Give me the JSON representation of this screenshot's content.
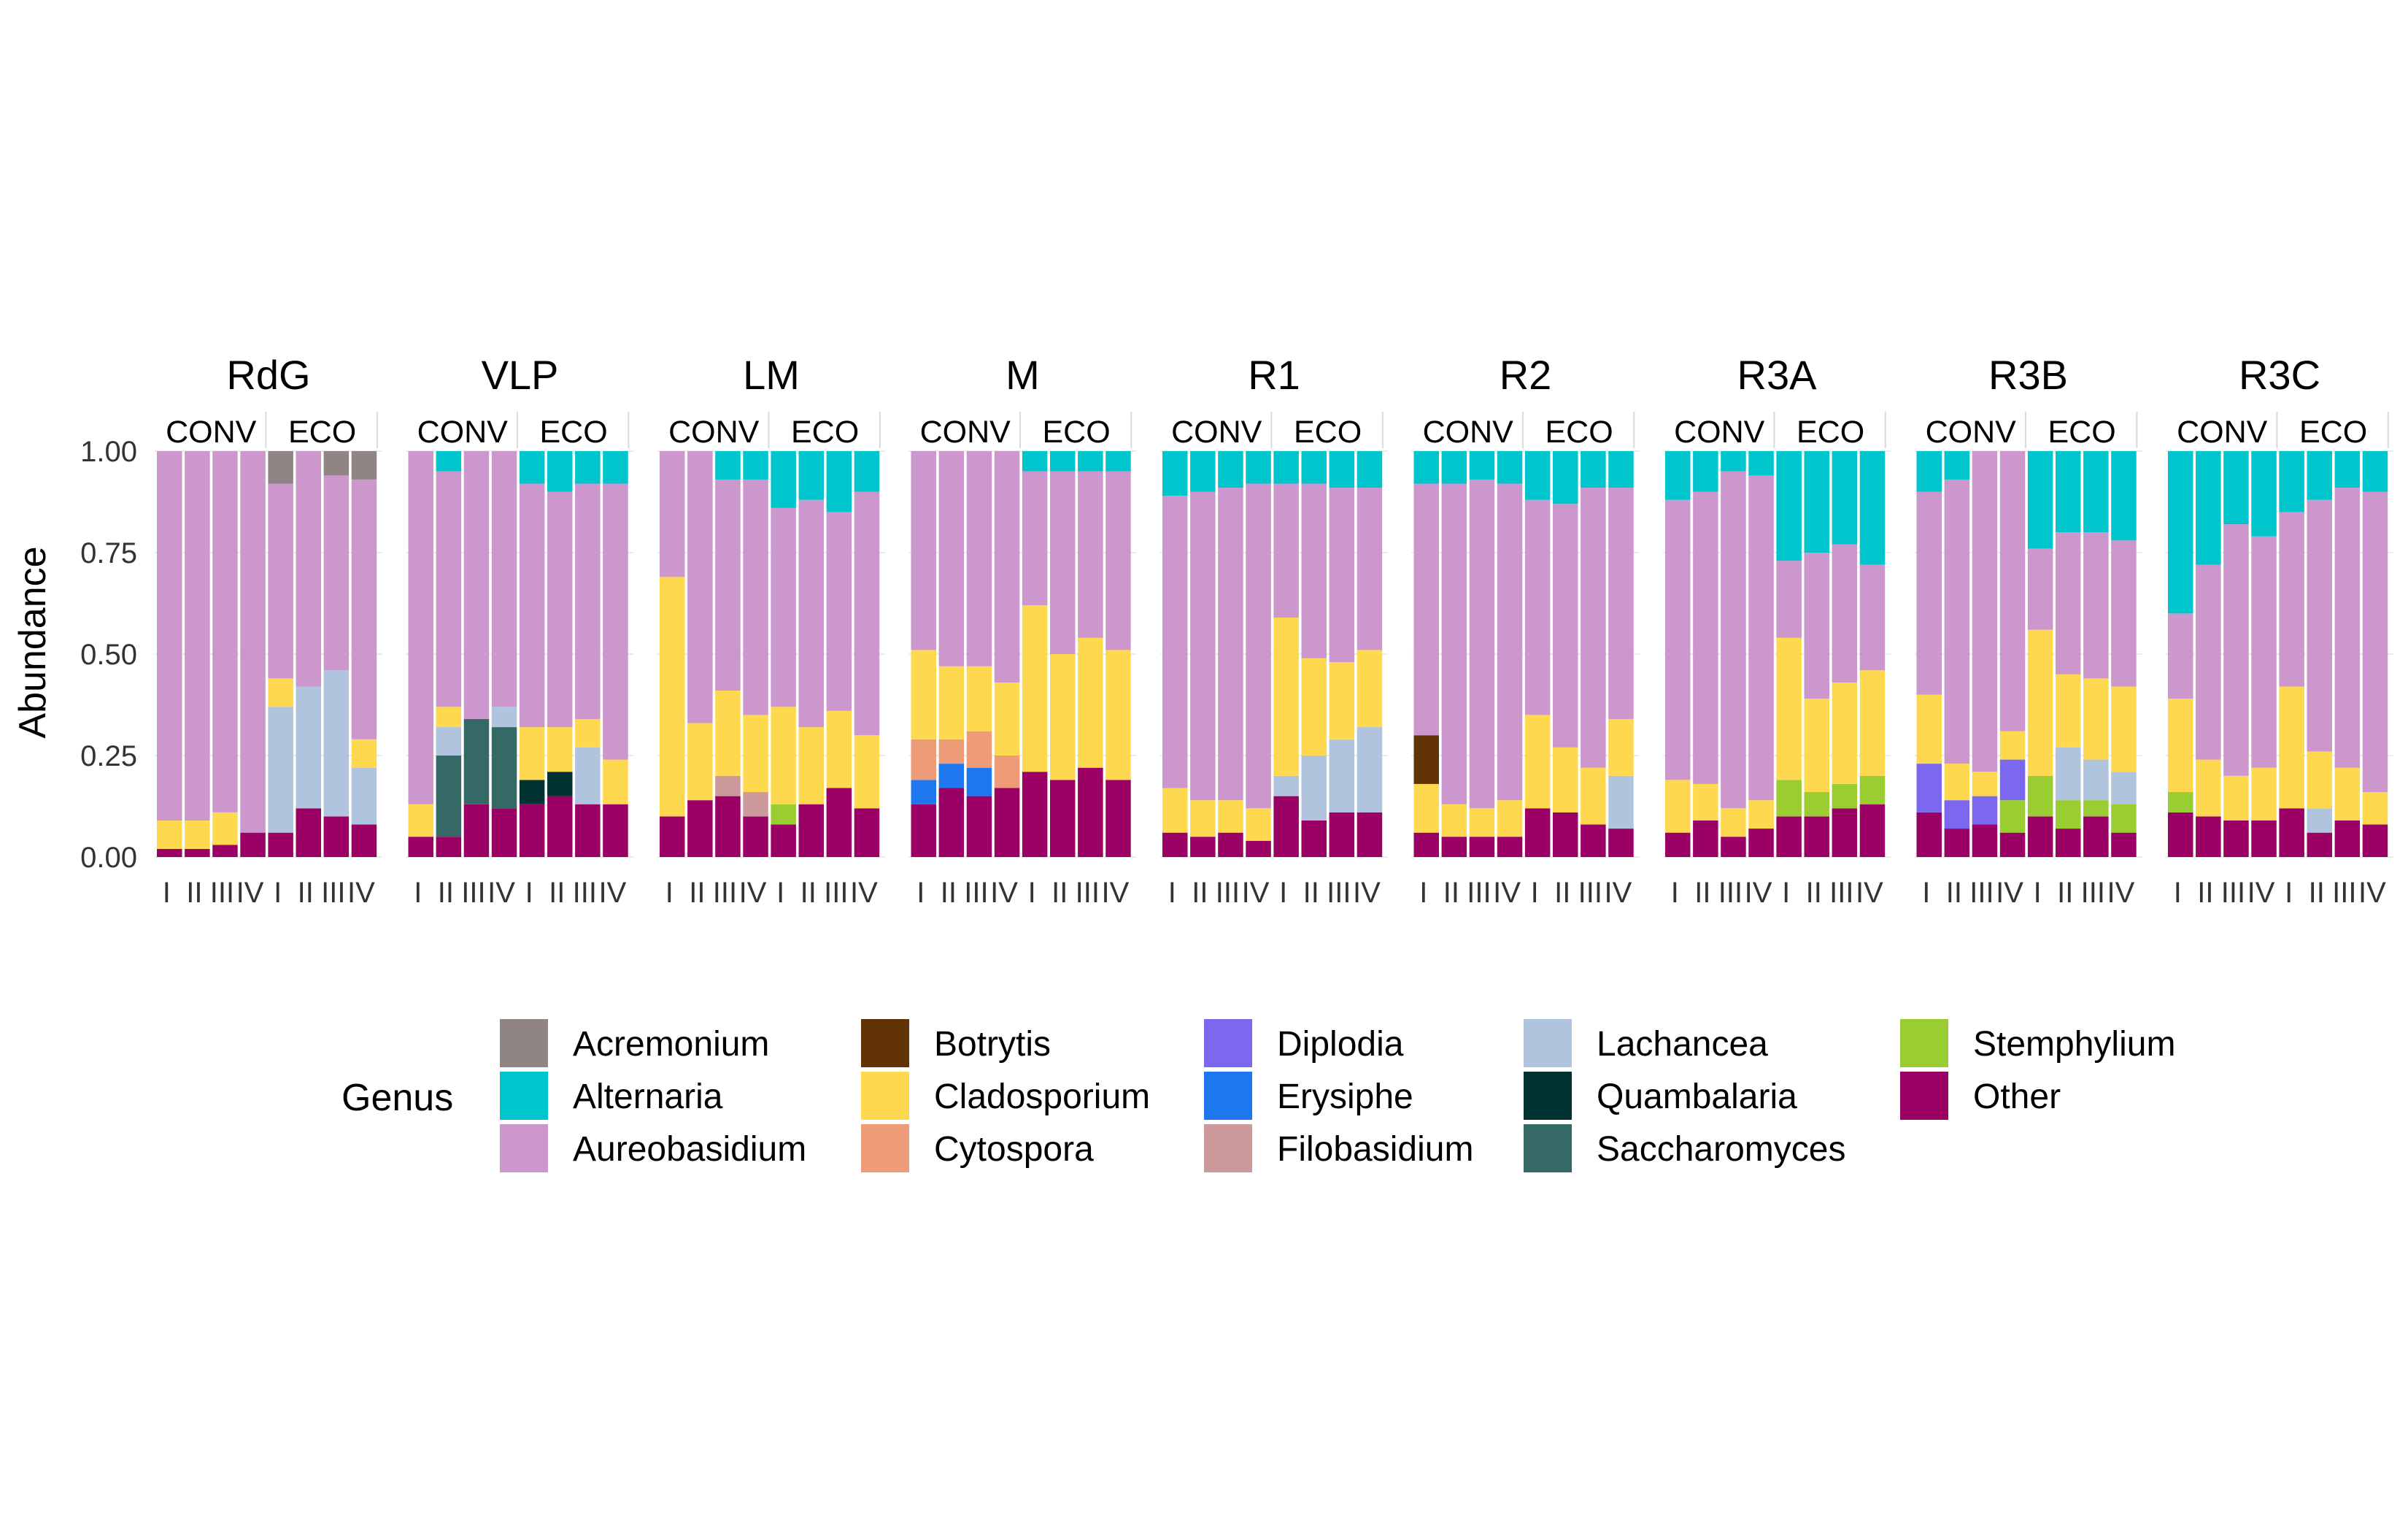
{
  "chart_data": {
    "type": "bar",
    "stacked": true,
    "ylabel": "Abundance",
    "ylim": [
      0,
      1
    ],
    "yticks": [
      "0.00",
      "0.25",
      "0.50",
      "0.75",
      "1.00"
    ],
    "facet_groups": [
      "CONV",
      "ECO"
    ],
    "replicates": [
      "I",
      "II",
      "III",
      "IV"
    ],
    "legend": {
      "title": "Genus",
      "position": "bottom"
    },
    "genera": [
      {
        "name": "Acremonium",
        "color": "#918584"
      },
      {
        "name": "Alternaria",
        "color": "#00C5CD"
      },
      {
        "name": "Aureobasidium",
        "color": "#CC97CC"
      },
      {
        "name": "Botrytis",
        "color": "#623405"
      },
      {
        "name": "Cladosporium",
        "color": "#FED94F"
      },
      {
        "name": "Cytospora",
        "color": "#EE9B78"
      },
      {
        "name": "Diplodia",
        "color": "#7B68EE"
      },
      {
        "name": "Erysiphe",
        "color": "#1F77EF"
      },
      {
        "name": "Filobasidium",
        "color": "#CC9A9A"
      },
      {
        "name": "Lachancea",
        "color": "#B0C4DE"
      },
      {
        "name": "Quambalaria",
        "color": "#013333"
      },
      {
        "name": "Saccharomyces",
        "color": "#346966"
      },
      {
        "name": "Stemphylium",
        "color": "#9ACD32"
      },
      {
        "name": "Other",
        "color": "#9B0065"
      }
    ],
    "panels": [
      {
        "title": "RdG",
        "bars": [
          {
            "Other": 0.02,
            "Cladosporium": 0.07,
            "Aureobasidium": 0.91
          },
          {
            "Other": 0.02,
            "Cladosporium": 0.07,
            "Aureobasidium": 0.91
          },
          {
            "Other": 0.03,
            "Cladosporium": 0.08,
            "Aureobasidium": 0.89
          },
          {
            "Other": 0.06,
            "Aureobasidium": 0.94
          },
          {
            "Other": 0.06,
            "Lachancea": 0.31,
            "Cladosporium": 0.07,
            "Aureobasidium": 0.48,
            "Acremonium": 0.08
          },
          {
            "Other": 0.12,
            "Lachancea": 0.3,
            "Aureobasidium": 0.58
          },
          {
            "Other": 0.1,
            "Lachancea": 0.36,
            "Aureobasidium": 0.48,
            "Acremonium": 0.06
          },
          {
            "Other": 0.08,
            "Lachancea": 0.14,
            "Cladosporium": 0.07,
            "Aureobasidium": 0.64,
            "Acremonium": 0.07
          }
        ]
      },
      {
        "title": "VLP",
        "bars": [
          {
            "Other": 0.05,
            "Cladosporium": 0.08,
            "Aureobasidium": 0.87
          },
          {
            "Other": 0.05,
            "Saccharomyces": 0.2,
            "Lachancea": 0.07,
            "Cladosporium": 0.05,
            "Aureobasidium": 0.58,
            "Alternaria": 0.05
          },
          {
            "Other": 0.13,
            "Saccharomyces": 0.21,
            "Aureobasidium": 0.66
          },
          {
            "Other": 0.12,
            "Saccharomyces": 0.2,
            "Lachancea": 0.05,
            "Aureobasidium": 0.63
          },
          {
            "Other": 0.13,
            "Quambalaria": 0.06,
            "Cladosporium": 0.13,
            "Aureobasidium": 0.6,
            "Alternaria": 0.08
          },
          {
            "Other": 0.15,
            "Quambalaria": 0.06,
            "Cladosporium": 0.11,
            "Aureobasidium": 0.58,
            "Alternaria": 0.1
          },
          {
            "Other": 0.13,
            "Lachancea": 0.14,
            "Cladosporium": 0.07,
            "Aureobasidium": 0.58,
            "Alternaria": 0.08
          },
          {
            "Other": 0.13,
            "Cladosporium": 0.11,
            "Aureobasidium": 0.68,
            "Alternaria": 0.08
          }
        ]
      },
      {
        "title": "LM",
        "bars": [
          {
            "Other": 0.1,
            "Cladosporium": 0.59,
            "Aureobasidium": 0.31
          },
          {
            "Other": 0.14,
            "Cladosporium": 0.19,
            "Aureobasidium": 0.67
          },
          {
            "Other": 0.15,
            "Filobasidium": 0.05,
            "Cladosporium": 0.21,
            "Aureobasidium": 0.52,
            "Alternaria": 0.07
          },
          {
            "Other": 0.1,
            "Filobasidium": 0.06,
            "Cladosporium": 0.19,
            "Aureobasidium": 0.58,
            "Alternaria": 0.07
          },
          {
            "Other": 0.08,
            "Stemphylium": 0.05,
            "Cladosporium": 0.24,
            "Aureobasidium": 0.49,
            "Alternaria": 0.14
          },
          {
            "Other": 0.13,
            "Cladosporium": 0.19,
            "Aureobasidium": 0.56,
            "Alternaria": 0.12
          },
          {
            "Other": 0.17,
            "Cladosporium": 0.19,
            "Aureobasidium": 0.49,
            "Alternaria": 0.15
          },
          {
            "Other": 0.12,
            "Cladosporium": 0.18,
            "Aureobasidium": 0.6,
            "Alternaria": 0.1
          }
        ]
      },
      {
        "title": "M",
        "bars": [
          {
            "Other": 0.13,
            "Erysiphe": 0.06,
            "Cytospora": 0.1,
            "Cladosporium": 0.22,
            "Aureobasidium": 0.49
          },
          {
            "Other": 0.17,
            "Erysiphe": 0.06,
            "Cytospora": 0.06,
            "Cladosporium": 0.18,
            "Aureobasidium": 0.53
          },
          {
            "Other": 0.15,
            "Erysiphe": 0.07,
            "Cytospora": 0.09,
            "Cladosporium": 0.16,
            "Aureobasidium": 0.53
          },
          {
            "Other": 0.17,
            "Cytospora": 0.08,
            "Cladosporium": 0.18,
            "Aureobasidium": 0.57
          },
          {
            "Other": 0.21,
            "Cladosporium": 0.41,
            "Aureobasidium": 0.33,
            "Alternaria": 0.05
          },
          {
            "Other": 0.19,
            "Cladosporium": 0.31,
            "Aureobasidium": 0.45,
            "Alternaria": 0.05
          },
          {
            "Other": 0.22,
            "Cladosporium": 0.32,
            "Aureobasidium": 0.41,
            "Alternaria": 0.05
          },
          {
            "Other": 0.19,
            "Cladosporium": 0.32,
            "Aureobasidium": 0.44,
            "Alternaria": 0.05
          }
        ]
      },
      {
        "title": "R1",
        "bars": [
          {
            "Other": 0.06,
            "Cladosporium": 0.11,
            "Aureobasidium": 0.72,
            "Alternaria": 0.11
          },
          {
            "Other": 0.05,
            "Cladosporium": 0.09,
            "Aureobasidium": 0.76,
            "Alternaria": 0.1
          },
          {
            "Other": 0.06,
            "Cladosporium": 0.08,
            "Aureobasidium": 0.77,
            "Alternaria": 0.09
          },
          {
            "Other": 0.04,
            "Cladosporium": 0.08,
            "Aureobasidium": 0.8,
            "Alternaria": 0.08
          },
          {
            "Other": 0.15,
            "Lachancea": 0.05,
            "Cladosporium": 0.39,
            "Aureobasidium": 0.33,
            "Alternaria": 0.08
          },
          {
            "Other": 0.09,
            "Lachancea": 0.16,
            "Cladosporium": 0.24,
            "Aureobasidium": 0.43,
            "Alternaria": 0.08
          },
          {
            "Other": 0.11,
            "Lachancea": 0.18,
            "Cladosporium": 0.19,
            "Aureobasidium": 0.43,
            "Alternaria": 0.09
          },
          {
            "Other": 0.11,
            "Lachancea": 0.21,
            "Cladosporium": 0.19,
            "Aureobasidium": 0.4,
            "Alternaria": 0.09
          }
        ]
      },
      {
        "title": "R2",
        "bars": [
          {
            "Other": 0.06,
            "Botrytis": 0.12,
            "Cladosporium": 0.12,
            "Aureobasidium": 0.62,
            "Alternaria": 0.08
          },
          {
            "Other": 0.05,
            "Cladosporium": 0.08,
            "Aureobasidium": 0.79,
            "Alternaria": 0.08
          },
          {
            "Other": 0.05,
            "Cladosporium": 0.07,
            "Aureobasidium": 0.81,
            "Alternaria": 0.07
          },
          {
            "Other": 0.05,
            "Cladosporium": 0.09,
            "Aureobasidium": 0.78,
            "Alternaria": 0.08
          },
          {
            "Other": 0.12,
            "Cladosporium": 0.23,
            "Aureobasidium": 0.53,
            "Alternaria": 0.12
          },
          {
            "Other": 0.11,
            "Cladosporium": 0.16,
            "Aureobasidium": 0.6,
            "Alternaria": 0.13
          },
          {
            "Other": 0.08,
            "Cladosporium": 0.14,
            "Aureobasidium": 0.69,
            "Alternaria": 0.09
          },
          {
            "Other": 0.07,
            "Lachancea": 0.13,
            "Cladosporium": 0.14,
            "Aureobasidium": 0.57,
            "Alternaria": 0.09
          }
        ]
      },
      {
        "title": "R3A",
        "bars": [
          {
            "Other": 0.06,
            "Cladosporium": 0.13,
            "Aureobasidium": 0.69,
            "Alternaria": 0.12
          },
          {
            "Other": 0.09,
            "Cladosporium": 0.09,
            "Aureobasidium": 0.72,
            "Alternaria": 0.1
          },
          {
            "Other": 0.05,
            "Cladosporium": 0.07,
            "Aureobasidium": 0.83,
            "Alternaria": 0.05
          },
          {
            "Other": 0.07,
            "Cladosporium": 0.07,
            "Aureobasidium": 0.8,
            "Alternaria": 0.06
          },
          {
            "Other": 0.1,
            "Stemphylium": 0.09,
            "Cladosporium": 0.35,
            "Aureobasidium": 0.19,
            "Alternaria": 0.27
          },
          {
            "Other": 0.1,
            "Stemphylium": 0.06,
            "Cladosporium": 0.23,
            "Aureobasidium": 0.36,
            "Alternaria": 0.25
          },
          {
            "Other": 0.12,
            "Stemphylium": 0.06,
            "Cladosporium": 0.25,
            "Aureobasidium": 0.34,
            "Alternaria": 0.23
          },
          {
            "Other": 0.13,
            "Stemphylium": 0.07,
            "Cladosporium": 0.26,
            "Aureobasidium": 0.26,
            "Alternaria": 0.28
          }
        ]
      },
      {
        "title": "R3B",
        "bars": [
          {
            "Other": 0.11,
            "Diplodia": 0.12,
            "Cladosporium": 0.17,
            "Aureobasidium": 0.5,
            "Alternaria": 0.1
          },
          {
            "Other": 0.07,
            "Diplodia": 0.07,
            "Cladosporium": 0.09,
            "Aureobasidium": 0.7,
            "Alternaria": 0.07
          },
          {
            "Other": 0.08,
            "Diplodia": 0.07,
            "Cladosporium": 0.06,
            "Aureobasidium": 0.79
          },
          {
            "Other": 0.06,
            "Stemphylium": 0.08,
            "Diplodia": 0.1,
            "Cladosporium": 0.07,
            "Aureobasidium": 0.69
          },
          {
            "Other": 0.1,
            "Stemphylium": 0.1,
            "Cladosporium": 0.36,
            "Aureobasidium": 0.2,
            "Alternaria": 0.24
          },
          {
            "Other": 0.07,
            "Stemphylium": 0.07,
            "Lachancea": 0.13,
            "Cladosporium": 0.18,
            "Aureobasidium": 0.35,
            "Alternaria": 0.2
          },
          {
            "Other": 0.1,
            "Stemphylium": 0.04,
            "Lachancea": 0.1,
            "Cladosporium": 0.2,
            "Aureobasidium": 0.36,
            "Alternaria": 0.2
          },
          {
            "Other": 0.06,
            "Stemphylium": 0.07,
            "Lachancea": 0.08,
            "Cladosporium": 0.21,
            "Aureobasidium": 0.36,
            "Alternaria": 0.22
          }
        ]
      },
      {
        "title": "R3C",
        "bars": [
          {
            "Other": 0.11,
            "Stemphylium": 0.05,
            "Cladosporium": 0.23,
            "Aureobasidium": 0.21,
            "Alternaria": 0.4
          },
          {
            "Other": 0.1,
            "Cladosporium": 0.14,
            "Aureobasidium": 0.48,
            "Alternaria": 0.28
          },
          {
            "Other": 0.09,
            "Cladosporium": 0.11,
            "Aureobasidium": 0.62,
            "Alternaria": 0.18
          },
          {
            "Other": 0.09,
            "Cladosporium": 0.13,
            "Aureobasidium": 0.57,
            "Alternaria": 0.21
          },
          {
            "Other": 0.12,
            "Cladosporium": 0.3,
            "Aureobasidium": 0.43,
            "Alternaria": 0.15
          },
          {
            "Other": 0.06,
            "Lachancea": 0.06,
            "Cladosporium": 0.14,
            "Aureobasidium": 0.62,
            "Alternaria": 0.12
          },
          {
            "Other": 0.09,
            "Cladosporium": 0.13,
            "Aureobasidium": 0.69,
            "Alternaria": 0.09
          },
          {
            "Other": 0.08,
            "Cladosporium": 0.08,
            "Aureobasidium": 0.74,
            "Alternaria": 0.1
          }
        ]
      }
    ]
  }
}
